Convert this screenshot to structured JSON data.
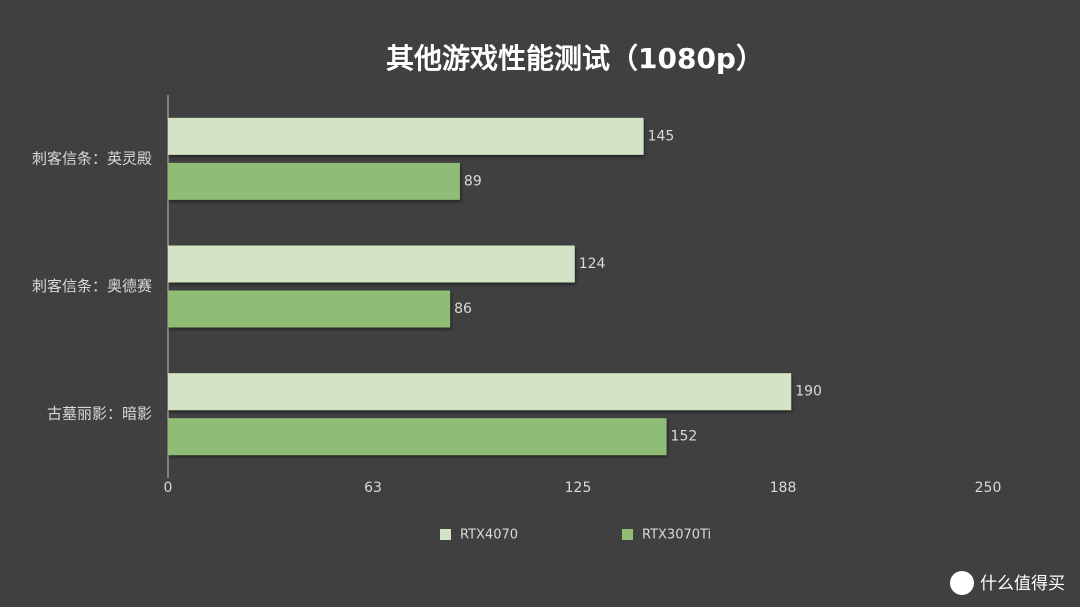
{
  "chart_data": {
    "type": "barh",
    "title": "其他游戏性能测试（1080p）",
    "categories": [
      "刺客信条：英灵殿",
      "刺客信条：奥德赛",
      "古墓丽影：暗影"
    ],
    "series": [
      {
        "name": "RTX4070",
        "color": "#d2e3c6",
        "values": [
          145,
          124,
          190
        ]
      },
      {
        "name": "RTX3070Ti",
        "color": "#8fbd75",
        "values": [
          89,
          86,
          152
        ]
      }
    ],
    "xlim": [
      0,
      250
    ],
    "xticks": [
      0,
      {
        "value": 62.5,
        "label": "63"
      },
      125,
      {
        "value": 187.5,
        "label": "188"
      },
      250
    ],
    "grid": false,
    "legend": "bottom"
  },
  "watermark": "什么值得买"
}
